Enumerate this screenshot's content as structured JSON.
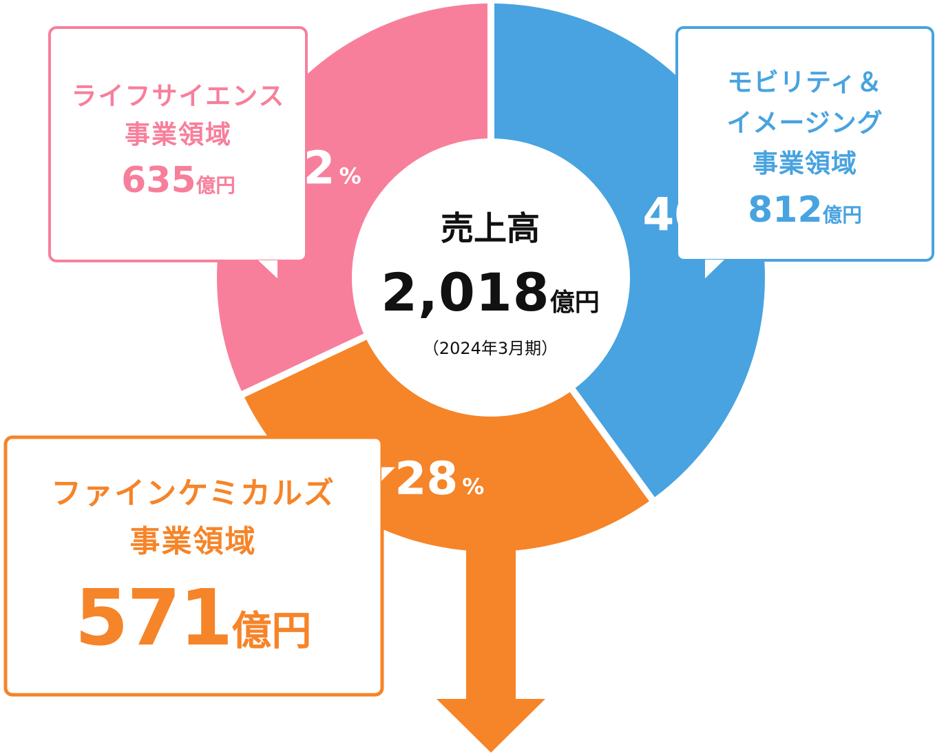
{
  "chart_data": {
    "type": "pie",
    "title": "売上高",
    "total": {
      "value": "2,018",
      "unit": "億円",
      "period": "（2024年3月期）"
    },
    "segments": [
      {
        "key": "mobility",
        "name": "モビリティ＆\nイメージング\n事業領域",
        "amount": "812",
        "unit": "億円",
        "percent": 40,
        "percent_label": "40",
        "color": "#48a3e0"
      },
      {
        "key": "fine",
        "name": "ファインケミカルズ\n事業領域",
        "amount": "571",
        "unit": "億円",
        "percent": 28,
        "percent_label": "28",
        "color": "#f68428"
      },
      {
        "key": "life",
        "name": "ライフサイエンス\n事業領域",
        "amount": "635",
        "unit": "億円",
        "percent": 32,
        "percent_label": "32",
        "color": "#f77f9b"
      }
    ],
    "percent_sign": "%"
  }
}
